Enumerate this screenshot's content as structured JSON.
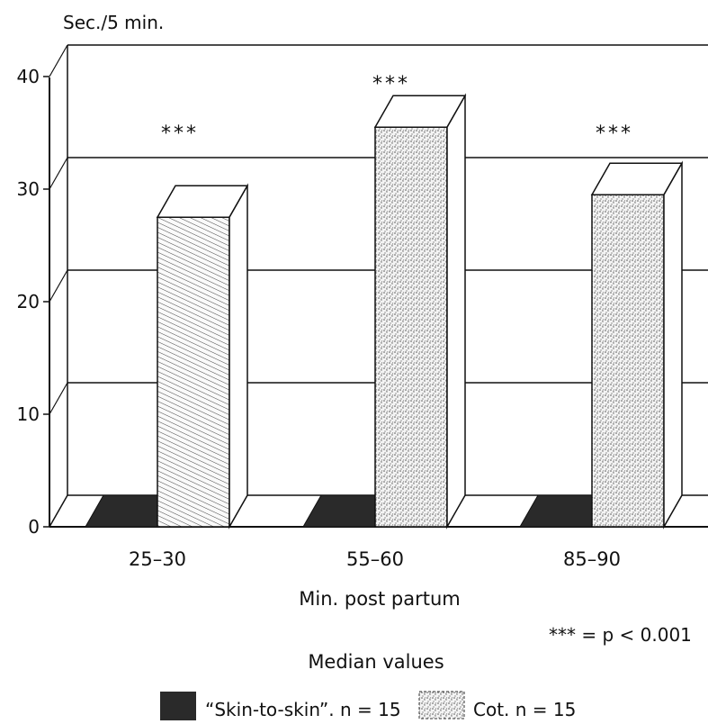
{
  "chart_data": {
    "type": "bar",
    "ylabel": "Sec./5 min.",
    "xlabel": "Min. post partum",
    "subtitle": "Median values",
    "note": "*** = p < 0.001",
    "yticks": [
      0,
      10,
      20,
      30,
      40
    ],
    "ylim": [
      0,
      40
    ],
    "categories": [
      "25–30",
      "55–60",
      "85–90"
    ],
    "series": [
      {
        "name": "“Skin-to-skin”. n = 15",
        "values": [
          0,
          0,
          0
        ],
        "fill": "dark"
      },
      {
        "name": "Cot. n = 15",
        "values": [
          27.5,
          35.5,
          29.5
        ],
        "fill": "stipple"
      }
    ],
    "significance": [
      "***",
      "***",
      "***"
    ]
  }
}
